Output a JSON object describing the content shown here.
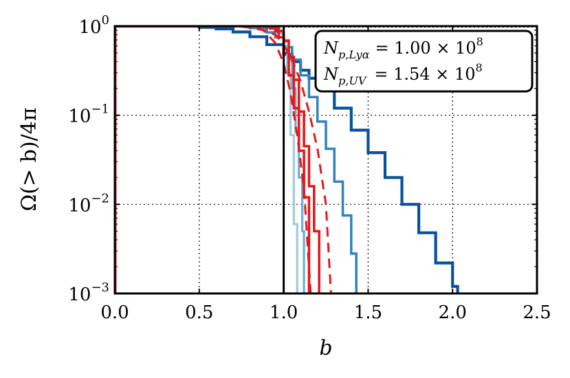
{
  "chart_data": {
    "type": "line",
    "title": "",
    "xlabel": "b",
    "ylabel": "Ω(> b)/4π",
    "xlim": [
      0.0,
      2.5
    ],
    "ylim": [
      0.001,
      1
    ],
    "yscale": "log",
    "grid": true,
    "x_ticks": [
      {
        "value": 0.0,
        "label": "0.0"
      },
      {
        "value": 0.5,
        "label": "0.5"
      },
      {
        "value": 1.0,
        "label": "1.0"
      },
      {
        "value": 1.5,
        "label": "1.5"
      },
      {
        "value": 2.0,
        "label": "2.0"
      },
      {
        "value": 2.5,
        "label": "2.5"
      }
    ],
    "y_ticks": [
      {
        "value": 1,
        "base": "10",
        "exp": "0"
      },
      {
        "value": 0.1,
        "base": "10",
        "exp": "−1"
      },
      {
        "value": 0.01,
        "base": "10",
        "exp": "−2"
      },
      {
        "value": 0.001,
        "base": "10",
        "exp": "−3"
      }
    ],
    "annotation": {
      "lines": [
        {
          "lhs": "N",
          "sub": "p,Lyα",
          "rhs": "= 1.00 × 10",
          "sup": "8"
        },
        {
          "lhs": "N",
          "sub": "p,UV",
          "rhs": "= 1.54 × 10",
          "sup": "8"
        }
      ]
    },
    "reference_line": {
      "x": 1.0,
      "color": "#000000"
    },
    "series": [
      {
        "color": "#08519c",
        "style": "step",
        "width": 4.2,
        "points": [
          [
            0.0,
            1.0
          ],
          [
            0.3,
            1.0
          ],
          [
            0.5,
            0.97
          ],
          [
            0.6,
            0.93
          ],
          [
            0.7,
            0.86
          ],
          [
            0.8,
            0.76
          ],
          [
            0.9,
            0.62
          ],
          [
            1.0,
            0.48
          ],
          [
            1.05,
            0.4
          ],
          [
            1.1,
            0.32
          ],
          [
            1.15,
            0.26
          ],
          [
            1.2,
            0.2
          ],
          [
            1.3,
            0.12
          ],
          [
            1.4,
            0.068
          ],
          [
            1.5,
            0.038
          ],
          [
            1.6,
            0.02
          ],
          [
            1.7,
            0.01
          ],
          [
            1.8,
            0.0048
          ],
          [
            1.9,
            0.0022
          ],
          [
            2.0,
            0.0012
          ],
          [
            2.03,
            0.001
          ]
        ]
      },
      {
        "color": "#3182bd",
        "style": "step",
        "width": 3.5,
        "points": [
          [
            0.0,
            1.0
          ],
          [
            0.6,
            1.0
          ],
          [
            0.8,
            0.95
          ],
          [
            0.9,
            0.85
          ],
          [
            0.95,
            0.75
          ],
          [
            1.0,
            0.58
          ],
          [
            1.05,
            0.42
          ],
          [
            1.1,
            0.28
          ],
          [
            1.15,
            0.16
          ],
          [
            1.2,
            0.085
          ],
          [
            1.25,
            0.042
          ],
          [
            1.3,
            0.018
          ],
          [
            1.35,
            0.0075
          ],
          [
            1.4,
            0.0028
          ],
          [
            1.43,
            0.001
          ]
        ]
      },
      {
        "color": "#9ecae1",
        "style": "step",
        "width": 3.2,
        "points": [
          [
            0.0,
            1.0
          ],
          [
            0.9,
            1.0
          ],
          [
            0.95,
            0.95
          ],
          [
            0.98,
            0.82
          ],
          [
            1.0,
            0.6
          ],
          [
            1.02,
            0.3
          ],
          [
            1.04,
            0.06
          ],
          [
            1.06,
            0.006
          ],
          [
            1.08,
            0.001
          ]
        ]
      },
      {
        "color": "#6baed6",
        "style": "step",
        "width": 3.2,
        "points": [
          [
            0.0,
            1.0
          ],
          [
            0.85,
            1.0
          ],
          [
            0.92,
            0.95
          ],
          [
            0.96,
            0.85
          ],
          [
            1.0,
            0.7
          ],
          [
            1.03,
            0.42
          ],
          [
            1.05,
            0.2
          ],
          [
            1.07,
            0.065
          ],
          [
            1.09,
            0.02
          ],
          [
            1.11,
            0.005
          ],
          [
            1.12,
            0.001
          ]
        ]
      },
      {
        "color": "#e31a1c",
        "style": "step",
        "width": 3.6,
        "points": [
          [
            0.0,
            1.0
          ],
          [
            0.8,
            1.0
          ],
          [
            0.9,
            0.97
          ],
          [
            0.95,
            0.88
          ],
          [
            1.0,
            0.68
          ],
          [
            1.03,
            0.45
          ],
          [
            1.06,
            0.25
          ],
          [
            1.09,
            0.11
          ],
          [
            1.12,
            0.045
          ],
          [
            1.15,
            0.016
          ],
          [
            1.18,
            0.005
          ],
          [
            1.21,
            0.001
          ]
        ]
      },
      {
        "color": "#e31a1c",
        "style": "step",
        "width": 3.6,
        "points": [
          [
            0.0,
            1.0
          ],
          [
            0.85,
            1.0
          ],
          [
            0.92,
            0.94
          ],
          [
            0.97,
            0.75
          ],
          [
            1.0,
            0.5
          ],
          [
            1.03,
            0.28
          ],
          [
            1.06,
            0.12
          ],
          [
            1.09,
            0.04
          ],
          [
            1.12,
            0.012
          ],
          [
            1.15,
            0.001
          ]
        ]
      },
      {
        "color": "#e31a1c",
        "style": "dashed",
        "width": 3.0,
        "points": [
          [
            0.0,
            1.0
          ],
          [
            0.7,
            1.0
          ],
          [
            0.85,
            0.95
          ],
          [
            0.95,
            0.8
          ],
          [
            1.0,
            0.62
          ],
          [
            1.05,
            0.42
          ],
          [
            1.1,
            0.24
          ],
          [
            1.15,
            0.11
          ],
          [
            1.2,
            0.042
          ],
          [
            1.25,
            0.01
          ],
          [
            1.28,
            0.001
          ]
        ]
      },
      {
        "color": "#e31a1c",
        "style": "dashed",
        "width": 3.0,
        "points": [
          [
            0.0,
            1.0
          ],
          [
            0.75,
            1.0
          ],
          [
            0.88,
            0.9
          ],
          [
            0.95,
            0.65
          ],
          [
            1.0,
            0.38
          ],
          [
            1.04,
            0.18
          ],
          [
            1.08,
            0.06
          ],
          [
            1.12,
            0.015
          ],
          [
            1.16,
            0.001
          ]
        ]
      },
      {
        "color": "#e31a1c",
        "style": "step",
        "width": 3.4,
        "points": [
          [
            0.0,
            0.001
          ],
          [
            0.003,
            1.0
          ],
          [
            0.8,
            1.0
          ]
        ]
      }
    ]
  }
}
